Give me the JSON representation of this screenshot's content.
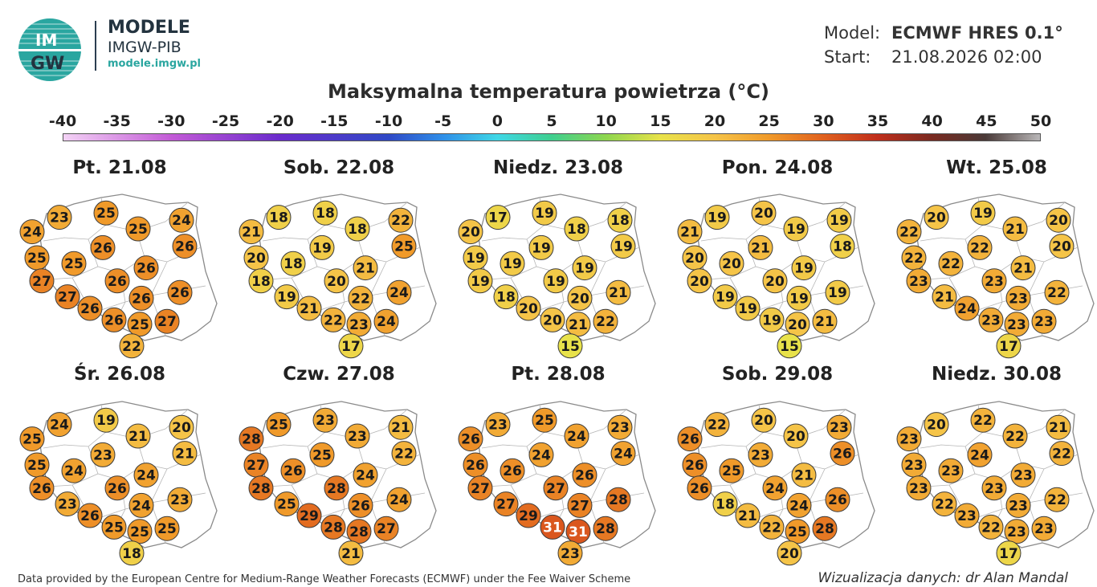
{
  "brand": {
    "logo_text_top": "IM",
    "logo_text_bottom": "GW",
    "title": "MODELE",
    "subtitle": "IMGW-PIB",
    "url": "modele.imgw.pl"
  },
  "model": {
    "model_label": "Model:",
    "model_value": "ECMWF HRES 0.1°",
    "start_label": "Start:",
    "start_value": "21.08.2026 02:00"
  },
  "title": "Maksymalna temperatura powietrza (°C)",
  "scale": {
    "ticks": [
      "-40",
      "-35",
      "-30",
      "-25",
      "-20",
      "-15",
      "-10",
      "-5",
      "0",
      "5",
      "10",
      "15",
      "20",
      "25",
      "30",
      "35",
      "40",
      "45",
      "50"
    ],
    "stops": [
      {
        "value": -40,
        "color": "#f3d2f5"
      },
      {
        "value": -30,
        "color": "#c25ad6"
      },
      {
        "value": -20,
        "color": "#6a2bcc"
      },
      {
        "value": -10,
        "color": "#2f49c6"
      },
      {
        "value": -5,
        "color": "#2f8fe8"
      },
      {
        "value": 0,
        "color": "#3fd7e6"
      },
      {
        "value": 5,
        "color": "#3fcf8f"
      },
      {
        "value": 10,
        "color": "#8ed64e"
      },
      {
        "value": 15,
        "color": "#e8e24a"
      },
      {
        "value": 20,
        "color": "#f5c448"
      },
      {
        "value": 25,
        "color": "#f09a2a"
      },
      {
        "value": 30,
        "color": "#e0611e"
      },
      {
        "value": 35,
        "color": "#c02e1c"
      },
      {
        "value": 40,
        "color": "#7a2a20"
      },
      {
        "value": 45,
        "color": "#4a3a38"
      },
      {
        "value": 50,
        "color": "#b9b7b8"
      }
    ]
  },
  "days": [
    {
      "label": "Pt. 21.08",
      "temps": [
        24,
        23,
        25,
        25,
        24,
        26,
        25,
        25,
        26,
        26,
        27,
        26,
        27,
        26,
        26,
        26,
        26,
        25,
        27,
        22
      ]
    },
    {
      "label": "Sob. 22.08",
      "temps": [
        21,
        18,
        18,
        18,
        22,
        25,
        20,
        18,
        19,
        21,
        18,
        20,
        19,
        22,
        24,
        21,
        22,
        23,
        24,
        17
      ]
    },
    {
      "label": "Niedz. 23.08",
      "temps": [
        20,
        17,
        19,
        18,
        18,
        19,
        19,
        19,
        19,
        19,
        19,
        19,
        18,
        20,
        21,
        20,
        20,
        21,
        22,
        15
      ]
    },
    {
      "label": "Pon. 24.08",
      "temps": [
        21,
        19,
        20,
        19,
        19,
        18,
        20,
        20,
        21,
        19,
        20,
        20,
        19,
        19,
        19,
        19,
        19,
        20,
        21,
        15
      ]
    },
    {
      "label": "Wt. 25.08",
      "temps": [
        22,
        20,
        19,
        21,
        20,
        20,
        22,
        22,
        22,
        21,
        23,
        23,
        21,
        23,
        22,
        24,
        23,
        23,
        23,
        17
      ]
    },
    {
      "label": "Śr. 26.08",
      "temps": [
        25,
        24,
        19,
        21,
        20,
        21,
        25,
        24,
        23,
        24,
        26,
        26,
        23,
        24,
        23,
        26,
        25,
        25,
        25,
        18
      ]
    },
    {
      "label": "Czw. 27.08",
      "temps": [
        28,
        25,
        23,
        23,
        21,
        22,
        27,
        26,
        25,
        24,
        28,
        28,
        25,
        26,
        24,
        29,
        28,
        28,
        27,
        21
      ]
    },
    {
      "label": "Pt. 28.08",
      "temps": [
        26,
        23,
        25,
        24,
        23,
        24,
        26,
        26,
        24,
        26,
        27,
        27,
        27,
        27,
        28,
        29,
        31,
        31,
        28,
        23
      ]
    },
    {
      "label": "Sob. 29.08",
      "temps": [
        26,
        22,
        20,
        20,
        23,
        26,
        26,
        25,
        23,
        21,
        26,
        24,
        18,
        24,
        26,
        21,
        22,
        25,
        28,
        20
      ]
    },
    {
      "label": "Niedz. 30.08",
      "temps": [
        23,
        20,
        22,
        22,
        21,
        22,
        23,
        23,
        24,
        23,
        23,
        23,
        22,
        23,
        22,
        23,
        22,
        23,
        23,
        17
      ]
    }
  ],
  "footer": {
    "left": "Data provided by the European Centre for Medium-Range Weather Forecasts (ECMWF) under the Fee Waiver Scheme",
    "right": "Wizualizacja danych: dr Alan Mandal"
  }
}
